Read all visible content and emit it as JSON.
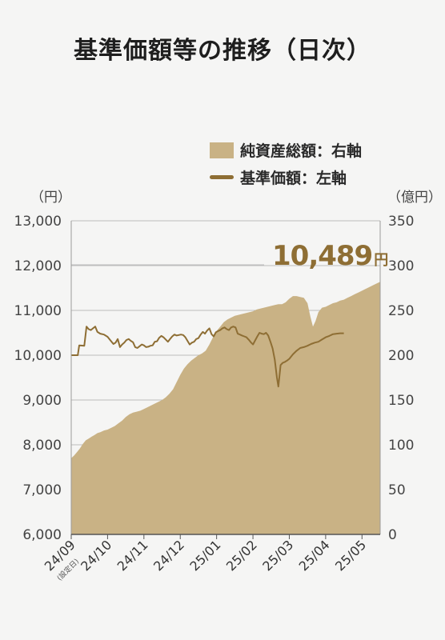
{
  "title": "基準価額等の推移（日次）",
  "legend": {
    "area_label": "純資産総額：右軸",
    "line_label": "基準価額：左軸"
  },
  "units": {
    "left": "（円）",
    "right": "（億円）"
  },
  "callout": {
    "value": "10,489",
    "unit": "円"
  },
  "colors": {
    "area": "#c9b285",
    "line": "#8e6e34",
    "grid": "#bdbdbd",
    "accent": "#8e6e34"
  },
  "chart_data": {
    "type": "area+line",
    "x_tick_labels": [
      {
        "label": "24/09",
        "sub": "(設定日)",
        "index": 0
      },
      {
        "label": "24/10",
        "index": 1
      },
      {
        "label": "24/11",
        "index": 2
      },
      {
        "label": "24/12",
        "index": 3
      },
      {
        "label": "25/01",
        "index": 4
      },
      {
        "label": "25/02",
        "index": 5
      },
      {
        "label": "25/03",
        "index": 6
      },
      {
        "label": "25/04",
        "index": 7
      },
      {
        "label": "25/05",
        "index": 8
      }
    ],
    "x_range": [
      0,
      8.5
    ],
    "left_axis": {
      "ticks": [
        "6,000",
        "7,000",
        "8,000",
        "9,000",
        "10,000",
        "11,000",
        "12,000",
        "13,000"
      ],
      "ylim": [
        6000,
        13000
      ]
    },
    "right_axis": {
      "ticks": [
        "0",
        "50",
        "100",
        "150",
        "200",
        "250",
        "300",
        "350"
      ],
      "ylim": [
        0,
        350
      ]
    },
    "series": [
      {
        "name": "純資産総額",
        "axis": "right",
        "style": "area",
        "points": [
          [
            0.0,
            85
          ],
          [
            0.08,
            88
          ],
          [
            0.16,
            92
          ],
          [
            0.24,
            96
          ],
          [
            0.32,
            101
          ],
          [
            0.4,
            105
          ],
          [
            0.48,
            107
          ],
          [
            0.56,
            109
          ],
          [
            0.64,
            111
          ],
          [
            0.72,
            113
          ],
          [
            0.8,
            114
          ],
          [
            0.9,
            116
          ],
          [
            1.0,
            117
          ],
          [
            1.1,
            119
          ],
          [
            1.2,
            121
          ],
          [
            1.3,
            124
          ],
          [
            1.4,
            127
          ],
          [
            1.5,
            131
          ],
          [
            1.6,
            134
          ],
          [
            1.7,
            136
          ],
          [
            1.8,
            137
          ],
          [
            1.9,
            138
          ],
          [
            2.0,
            140
          ],
          [
            2.1,
            142
          ],
          [
            2.2,
            144
          ],
          [
            2.3,
            146
          ],
          [
            2.4,
            148
          ],
          [
            2.5,
            150
          ],
          [
            2.6,
            153
          ],
          [
            2.7,
            157
          ],
          [
            2.8,
            162
          ],
          [
            2.9,
            170
          ],
          [
            3.0,
            178
          ],
          [
            3.1,
            185
          ],
          [
            3.2,
            190
          ],
          [
            3.3,
            194
          ],
          [
            3.4,
            197
          ],
          [
            3.5,
            200
          ],
          [
            3.6,
            202
          ],
          [
            3.7,
            205
          ],
          [
            3.8,
            212
          ],
          [
            3.9,
            220
          ],
          [
            4.0,
            227
          ],
          [
            4.1,
            232
          ],
          [
            4.2,
            237
          ],
          [
            4.3,
            240
          ],
          [
            4.4,
            242
          ],
          [
            4.5,
            244
          ],
          [
            4.6,
            245
          ],
          [
            4.7,
            246
          ],
          [
            4.8,
            247
          ],
          [
            4.9,
            248
          ],
          [
            5.0,
            249
          ],
          [
            5.1,
            251
          ],
          [
            5.2,
            252
          ],
          [
            5.3,
            253
          ],
          [
            5.4,
            254
          ],
          [
            5.5,
            255
          ],
          [
            5.6,
            256
          ],
          [
            5.7,
            257
          ],
          [
            5.8,
            257
          ],
          [
            5.9,
            259
          ],
          [
            6.0,
            263
          ],
          [
            6.1,
            266
          ],
          [
            6.2,
            266
          ],
          [
            6.3,
            265
          ],
          [
            6.4,
            264
          ],
          [
            6.5,
            258
          ],
          [
            6.58,
            243
          ],
          [
            6.65,
            232
          ],
          [
            6.72,
            238
          ],
          [
            6.8,
            248
          ],
          [
            6.9,
            253
          ],
          [
            7.0,
            254
          ],
          [
            7.1,
            256
          ],
          [
            7.2,
            258
          ],
          [
            7.3,
            259
          ],
          [
            7.4,
            261
          ],
          [
            7.5,
            262
          ],
          [
            7.6,
            264
          ],
          [
            7.7,
            266
          ],
          [
            7.8,
            268
          ],
          [
            7.9,
            270
          ],
          [
            8.0,
            272
          ],
          [
            8.1,
            274
          ],
          [
            8.2,
            276
          ],
          [
            8.3,
            278
          ],
          [
            8.4,
            280
          ],
          [
            8.5,
            282
          ]
        ]
      },
      {
        "name": "基準価額",
        "axis": "left",
        "style": "line",
        "points": [
          [
            0.0,
            10000
          ],
          [
            0.1,
            10000
          ],
          [
            0.18,
            10000
          ],
          [
            0.22,
            10220
          ],
          [
            0.3,
            10215
          ],
          [
            0.36,
            10210
          ],
          [
            0.42,
            10640
          ],
          [
            0.48,
            10580
          ],
          [
            0.54,
            10560
          ],
          [
            0.6,
            10600
          ],
          [
            0.66,
            10640
          ],
          [
            0.72,
            10520
          ],
          [
            0.8,
            10480
          ],
          [
            0.9,
            10460
          ],
          [
            1.0,
            10410
          ],
          [
            1.08,
            10330
          ],
          [
            1.16,
            10250
          ],
          [
            1.22,
            10280
          ],
          [
            1.28,
            10360
          ],
          [
            1.34,
            10180
          ],
          [
            1.4,
            10240
          ],
          [
            1.46,
            10280
          ],
          [
            1.52,
            10340
          ],
          [
            1.58,
            10360
          ],
          [
            1.64,
            10320
          ],
          [
            1.7,
            10290
          ],
          [
            1.76,
            10180
          ],
          [
            1.82,
            10160
          ],
          [
            1.88,
            10200
          ],
          [
            1.94,
            10240
          ],
          [
            2.0,
            10220
          ],
          [
            2.06,
            10180
          ],
          [
            2.12,
            10190
          ],
          [
            2.18,
            10210
          ],
          [
            2.24,
            10220
          ],
          [
            2.3,
            10300
          ],
          [
            2.36,
            10310
          ],
          [
            2.42,
            10390
          ],
          [
            2.48,
            10430
          ],
          [
            2.54,
            10400
          ],
          [
            2.6,
            10350
          ],
          [
            2.66,
            10300
          ],
          [
            2.72,
            10360
          ],
          [
            2.78,
            10420
          ],
          [
            2.84,
            10460
          ],
          [
            2.9,
            10440
          ],
          [
            2.96,
            10450
          ],
          [
            3.02,
            10460
          ],
          [
            3.08,
            10450
          ],
          [
            3.14,
            10400
          ],
          [
            3.2,
            10320
          ],
          [
            3.26,
            10240
          ],
          [
            3.32,
            10280
          ],
          [
            3.38,
            10300
          ],
          [
            3.44,
            10360
          ],
          [
            3.5,
            10380
          ],
          [
            3.56,
            10460
          ],
          [
            3.62,
            10520
          ],
          [
            3.68,
            10480
          ],
          [
            3.74,
            10550
          ],
          [
            3.8,
            10600
          ],
          [
            3.86,
            10470
          ],
          [
            3.92,
            10420
          ],
          [
            3.98,
            10510
          ],
          [
            4.04,
            10540
          ],
          [
            4.1,
            10560
          ],
          [
            4.16,
            10600
          ],
          [
            4.22,
            10620
          ],
          [
            4.28,
            10580
          ],
          [
            4.34,
            10560
          ],
          [
            4.4,
            10620
          ],
          [
            4.46,
            10640
          ],
          [
            4.52,
            10620
          ],
          [
            4.58,
            10480
          ],
          [
            4.64,
            10460
          ],
          [
            4.7,
            10440
          ],
          [
            4.76,
            10420
          ],
          [
            4.82,
            10400
          ],
          [
            4.88,
            10350
          ],
          [
            4.94,
            10290
          ],
          [
            5.0,
            10240
          ],
          [
            5.06,
            10330
          ],
          [
            5.12,
            10420
          ],
          [
            5.18,
            10500
          ],
          [
            5.24,
            10480
          ],
          [
            5.3,
            10470
          ],
          [
            5.36,
            10500
          ],
          [
            5.42,
            10440
          ],
          [
            5.48,
            10300
          ],
          [
            5.54,
            10150
          ],
          [
            5.6,
            9900
          ],
          [
            5.66,
            9500
          ],
          [
            5.7,
            9300
          ],
          [
            5.76,
            9780
          ],
          [
            5.82,
            9830
          ],
          [
            5.88,
            9850
          ],
          [
            5.94,
            9880
          ],
          [
            6.0,
            9920
          ],
          [
            6.1,
            10020
          ],
          [
            6.2,
            10100
          ],
          [
            6.3,
            10160
          ],
          [
            6.4,
            10180
          ],
          [
            6.5,
            10210
          ],
          [
            6.6,
            10250
          ],
          [
            6.7,
            10280
          ],
          [
            6.8,
            10300
          ],
          [
            6.9,
            10350
          ],
          [
            7.0,
            10400
          ],
          [
            7.1,
            10430
          ],
          [
            7.2,
            10470
          ],
          [
            7.3,
            10480
          ],
          [
            7.4,
            10490
          ],
          [
            7.5,
            10489
          ]
        ]
      }
    ]
  }
}
